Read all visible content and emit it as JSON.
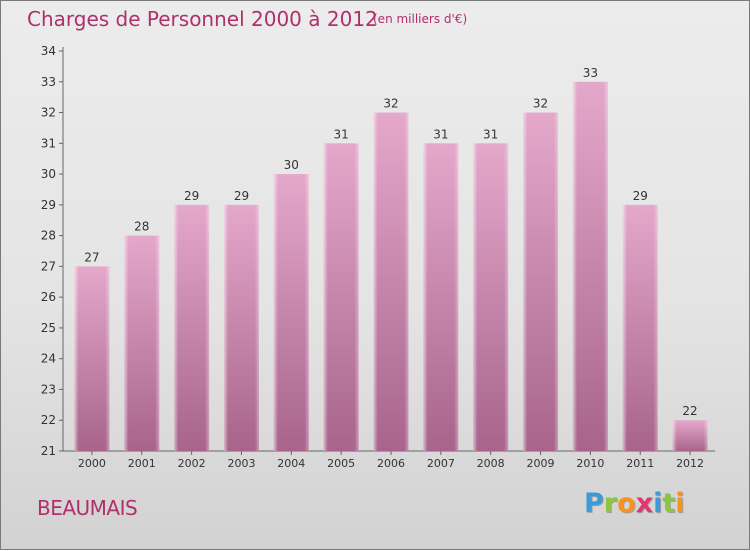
{
  "title": "Charges de Personnel 2000 à 2012",
  "subtitle": "(en milliers d'€)",
  "commune": "BEAUMAIS",
  "logo": {
    "letters": [
      {
        "ch": "P",
        "color": "#3b9bd8"
      },
      {
        "ch": "r",
        "color": "#8cc63f"
      },
      {
        "ch": "o",
        "color": "#f7931e"
      },
      {
        "ch": "x",
        "color": "#e63372"
      },
      {
        "ch": "i",
        "color": "#3b9bd8"
      },
      {
        "ch": "t",
        "color": "#8cc63f"
      },
      {
        "ch": "i",
        "color": "#f7931e"
      }
    ]
  },
  "chart_data": {
    "type": "bar",
    "title": "Charges de Personnel 2000 à 2012",
    "subtitle": "(en milliers d'€)",
    "categories": [
      "2000",
      "2001",
      "2002",
      "2003",
      "2004",
      "2005",
      "2006",
      "2007",
      "2008",
      "2009",
      "2010",
      "2011",
      "2012"
    ],
    "values": [
      27,
      28,
      29,
      29,
      30,
      31,
      32,
      31,
      31,
      32,
      33,
      29,
      22
    ],
    "ylim": [
      21,
      34
    ],
    "yticks": [
      21,
      22,
      23,
      24,
      25,
      26,
      27,
      28,
      29,
      30,
      31,
      32,
      33,
      34
    ],
    "grid": false,
    "bar_color_top": "#e4a8cb",
    "bar_color_bottom": "#a8648b"
  }
}
